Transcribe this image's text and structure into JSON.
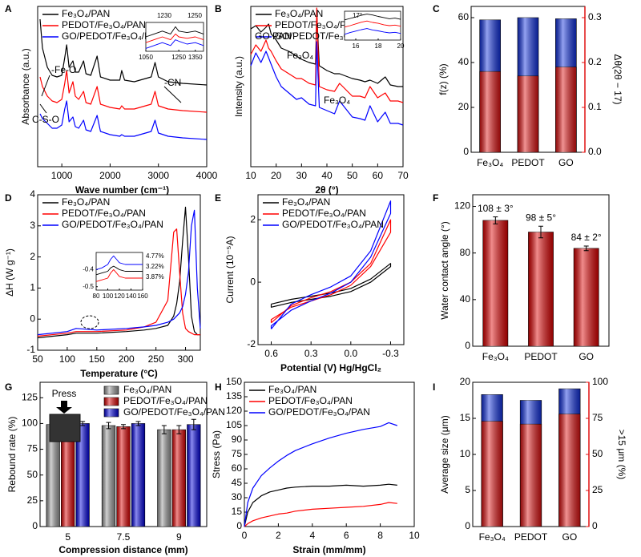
{
  "chart_data": [
    {
      "panel": "A",
      "type": "line",
      "xlabel": "Wave number (cm⁻¹)",
      "ylabel": "Absorbance (a.u.)",
      "x": [
        550,
        600,
        700,
        800,
        900,
        1000,
        1060,
        1100,
        1150,
        1230,
        1280,
        1350,
        1450,
        1500,
        1600,
        1730,
        1800,
        2000,
        2200,
        2240,
        2300,
        2500,
        2850,
        2930,
        3000,
        3200,
        3500,
        4000
      ],
      "xlim": [
        500,
        4000
      ],
      "xticks": [
        1000,
        2000,
        3000,
        4000
      ],
      "ylim": [
        0,
        10
      ],
      "legend": "upper left",
      "series": [
        {
          "name": "Fe₃O₄/PAN",
          "color": "#000000",
          "values": [
            9.2,
            7.4,
            6.2,
            5.7,
            5.6,
            5.7,
            6.8,
            7.6,
            6.2,
            6.6,
            5.9,
            5.9,
            6.6,
            5.8,
            5.7,
            6.9,
            5.6,
            5.4,
            5.4,
            6.0,
            5.4,
            5.3,
            5.6,
            6.5,
            5.6,
            5.3,
            5.2,
            5.1
          ]
        },
        {
          "name": "PEDOT/Fe₃O₄/PAN",
          "color": "#ff0000",
          "values": [
            5.6,
            5.0,
            4.4,
            4.1,
            4.0,
            4.2,
            5.2,
            6.0,
            4.6,
            5.3,
            4.4,
            4.2,
            4.7,
            4.0,
            3.9,
            5.0,
            3.9,
            3.7,
            3.6,
            3.8,
            3.6,
            3.6,
            3.9,
            4.7,
            3.8,
            3.6,
            3.5,
            3.4
          ]
        },
        {
          "name": "GO/PEDOT/Fe₃O₄/PAN",
          "color": "#0000ff",
          "values": [
            3.3,
            3.0,
            2.7,
            2.4,
            2.4,
            2.6,
            3.6,
            4.1,
            2.8,
            3.1,
            2.5,
            2.4,
            2.9,
            2.3,
            2.2,
            3.2,
            2.2,
            2.0,
            1.9,
            2.0,
            1.9,
            1.9,
            2.2,
            2.9,
            2.1,
            1.9,
            1.8,
            1.7
          ]
        }
      ],
      "annotations": [
        "-Fe-O",
        "-CN",
        "C-S-O"
      ],
      "inset": {
        "type": "line",
        "x": [
          1050,
          1100,
          1150,
          1200,
          1230,
          1250,
          1300,
          1350,
          1400
        ],
        "xlim": [
          1050,
          1400
        ],
        "xticks": [
          1050,
          1250,
          1350
        ],
        "ylim": [
          0,
          10
        ],
        "series": [
          {
            "color": "#000000",
            "values": [
              5,
              6,
              7,
              6,
              8.5,
              7,
              6.5,
              7,
              6
            ]
          },
          {
            "color": "#ff0000",
            "values": [
              3,
              4,
              5,
              4,
              6,
              5,
              4.5,
              5,
              4
            ]
          },
          {
            "color": "#0000ff",
            "values": [
              1,
              2,
              3,
              2,
              4,
              3.5,
              2.5,
              3,
              2
            ]
          }
        ],
        "annotations": [
          "1230",
          "1250"
        ]
      }
    },
    {
      "panel": "B",
      "type": "line",
      "xlabel": "2θ (°)",
      "ylabel": "Intensity (a.u.)",
      "x": [
        10,
        12,
        14,
        16,
        17,
        18,
        20,
        22,
        25,
        28,
        30,
        33,
        35.5,
        36,
        37,
        40,
        43,
        45,
        50,
        53,
        55,
        57,
        60,
        63,
        65,
        68,
        70
      ],
      "xlim": [
        10,
        70
      ],
      "xticks": [
        10,
        20,
        30,
        40,
        50,
        60,
        70
      ],
      "ylim": [
        0,
        10
      ],
      "legend": "upper left",
      "series": [
        {
          "name": "Fe₃O₄/PAN",
          "color": "#000000",
          "values": [
            8.6,
            8.8,
            8.4,
            8.7,
            8.9,
            8.3,
            7.9,
            7.4,
            7.2,
            6.9,
            6.7,
            6.5,
            6.4,
            9.6,
            6.3,
            6.0,
            5.8,
            5.8,
            5.5,
            5.4,
            5.3,
            5.4,
            5.2,
            5.6,
            5.1,
            5.0,
            5.0
          ]
        },
        {
          "name": "PEDOT/Fe₃O₄/PAN",
          "color": "#ff0000",
          "values": [
            7.0,
            7.6,
            7.2,
            7.9,
            7.4,
            7.2,
            6.6,
            6.1,
            5.8,
            5.5,
            5.5,
            5.2,
            5.1,
            9.9,
            5.0,
            4.8,
            4.7,
            5.2,
            4.4,
            4.4,
            4.3,
            5.0,
            4.3,
            4.6,
            4.1,
            4.1,
            4.0
          ]
        },
        {
          "name": "GO/PEDOT/Fe₃O₄/PAN",
          "color": "#0000ff",
          "values": [
            6.3,
            7.1,
            6.5,
            7.2,
            6.8,
            6.4,
            5.6,
            5.0,
            4.6,
            4.2,
            4.3,
            3.9,
            3.8,
            7.8,
            3.7,
            3.5,
            3.3,
            4.1,
            3.1,
            3.0,
            2.9,
            3.8,
            2.8,
            3.4,
            2.7,
            2.7,
            2.6
          ]
        }
      ],
      "annotations": [
        "GO PAN",
        "Fe₃O₄",
        "Fe₃O₄"
      ],
      "inset": {
        "type": "line",
        "x": [
          15,
          15.5,
          16,
          16.5,
          17,
          17.5,
          18,
          18.5,
          19,
          19.5,
          20
        ],
        "xlim": [
          15,
          20
        ],
        "xticks": [
          16,
          18,
          20
        ],
        "ylim": [
          0,
          10
        ],
        "series": [
          {
            "color": "#000000",
            "values": [
              7,
              7.5,
              8,
              8.6,
              9,
              8.7,
              8.2,
              7.8,
              7.4,
              7.6,
              7.2
            ]
          },
          {
            "color": "#ff0000",
            "values": [
              4.5,
              5,
              5.6,
              6.2,
              6.6,
              6.1,
              5.8,
              5.3,
              5,
              5.2,
              4.8
            ]
          },
          {
            "color": "#0000ff",
            "values": [
              2,
              2.6,
              3.1,
              3.6,
              4,
              3.5,
              3.2,
              2.8,
              2.5,
              2.7,
              2.3
            ]
          }
        ],
        "annotations": [
          "17°"
        ]
      }
    },
    {
      "panel": "C",
      "type": "bar",
      "categories": [
        "Fe₃O₄",
        "PEDOT",
        "GO"
      ],
      "ylabel": "f(z) (%)",
      "y2label": "Δθ(2θ − 17)",
      "ylim": [
        0,
        65
      ],
      "yticks": [
        0,
        20,
        40,
        60
      ],
      "y2lim": [
        0,
        0.325
      ],
      "y2ticks": [
        {
          "value": 0,
          "label": "0.0"
        },
        0.1,
        0.2,
        0.3
      ],
      "series": [
        {
          "color": "#1030e0",
          "values": [
            59,
            60,
            59.5
          ]
        },
        {
          "color": "#e01010",
          "axis": "y2",
          "values": [
            0.18,
            0.17,
            0.19
          ]
        }
      ]
    },
    {
      "panel": "D",
      "type": "line",
      "xlabel": "Temperature (°C)",
      "ylabel": "ΔH (W g⁻¹)",
      "x": [
        50,
        100,
        115,
        150,
        200,
        230,
        250,
        270,
        280,
        285,
        290,
        295,
        300,
        305,
        310,
        315,
        320,
        325
      ],
      "xlim": [
        50,
        325
      ],
      "xticks": [
        50,
        100,
        150,
        200,
        250,
        300
      ],
      "ylim": [
        -1,
        4
      ],
      "yticks": [
        -1,
        0,
        1,
        2,
        3,
        4
      ],
      "legend": "upper left",
      "series": [
        {
          "name": "Fe₃O₄/PAN",
          "color": "#000000",
          "values": [
            -0.6,
            -0.5,
            -0.45,
            -0.45,
            -0.4,
            -0.35,
            -0.3,
            -0.2,
            0.1,
            0.5,
            1.2,
            2.5,
            3.6,
            2.0,
            0.1,
            -0.4,
            -0.5,
            -0.5
          ]
        },
        {
          "name": "PEDOT/Fe₃O₄/PAN",
          "color": "#ff0000",
          "values": [
            -0.55,
            -0.45,
            -0.4,
            -0.4,
            -0.35,
            -0.25,
            -0.1,
            0.6,
            2.8,
            2.9,
            1.5,
            0.2,
            -0.3,
            -0.4,
            -0.45,
            -0.5,
            -0.5,
            -0.5
          ]
        },
        {
          "name": "GO/PEDOT/Fe₃O₄/PAN",
          "color": "#0000ff",
          "values": [
            -0.5,
            -0.4,
            -0.3,
            -0.35,
            -0.3,
            -0.25,
            -0.2,
            -0.1,
            0.0,
            0.1,
            0.2,
            0.4,
            0.8,
            1.5,
            3.0,
            3.5,
            1.0,
            -0.3
          ]
        }
      ],
      "inset": {
        "type": "line",
        "x": [
          80,
          90,
          100,
          105,
          110,
          115,
          120,
          130,
          140,
          160
        ],
        "xlim": [
          80,
          160
        ],
        "xticks": [
          80,
          100,
          120,
          140,
          160
        ],
        "ylim": [
          -0.52,
          -0.3
        ],
        "yticks": [
          -0.5,
          -0.4
        ],
        "series": [
          {
            "color": "#000000",
            "values": [
              -0.43,
              -0.42,
              -0.41,
              -0.39,
              -0.38,
              -0.39,
              -0.4,
              -0.41,
              -0.41,
              -0.41
            ]
          },
          {
            "color": "#ff0000",
            "values": [
              -0.47,
              -0.46,
              -0.45,
              -0.42,
              -0.4,
              -0.42,
              -0.44,
              -0.45,
              -0.45,
              -0.45
            ]
          },
          {
            "color": "#0000ff",
            "values": [
              -0.4,
              -0.39,
              -0.37,
              -0.34,
              -0.32,
              -0.34,
              -0.36,
              -0.37,
              -0.37,
              -0.37
            ]
          }
        ],
        "annotations": [
          "4.77%",
          "3.22%",
          "3.87%"
        ]
      }
    },
    {
      "panel": "E",
      "type": "line",
      "xlabel": "Potential (V) Hg/HgCl₂",
      "ylabel": "Current (10⁻⁵A)",
      "xlim": [
        0.7,
        -0.4
      ],
      "xticks": [
        0.6,
        0.3,
        {
          "value": 0,
          "label": "0.0"
        },
        -0.3
      ],
      "ylim": [
        -2,
        2.8
      ],
      "yticks": [
        -2,
        0,
        2
      ],
      "legend": "upper left",
      "series": [
        {
          "name": "Fe₃O₄/PAN",
          "color": "#000000",
          "x": [
            0.6,
            0.45,
            0.3,
            0.15,
            0,
            -0.15,
            -0.3,
            -0.3,
            -0.15,
            0,
            0.15,
            0.3,
            0.45,
            0.6,
            0.6
          ],
          "values": [
            -0.7,
            -0.55,
            -0.45,
            -0.35,
            -0.2,
            0.1,
            0.6,
            0.5,
            0.0,
            -0.3,
            -0.45,
            -0.55,
            -0.65,
            -0.8,
            -0.7
          ]
        },
        {
          "name": "PEDOT/Fe₃O₄/PAN",
          "color": "#ff0000",
          "x": [
            0.6,
            0.45,
            0.3,
            0.15,
            0,
            -0.15,
            -0.3,
            -0.3,
            -0.15,
            0,
            0.15,
            0.3,
            0.45,
            0.6,
            0.6
          ],
          "values": [
            -1.3,
            -0.75,
            -0.5,
            -0.3,
            0.0,
            0.6,
            2.0,
            1.6,
            0.5,
            -0.1,
            -0.4,
            -0.6,
            -0.8,
            -1.2,
            -1.3
          ]
        },
        {
          "name": "GO/PEDOT/Fe₃O₄/PAN",
          "color": "#0000ff",
          "x": [
            0.6,
            0.45,
            0.3,
            0.15,
            0,
            -0.15,
            -0.3,
            -0.3,
            -0.15,
            0,
            0.15,
            0.3,
            0.45,
            0.6,
            0.6
          ],
          "values": [
            -1.5,
            -0.7,
            -0.4,
            -0.15,
            0.2,
            1.0,
            2.6,
            2.2,
            0.8,
            0.0,
            -0.35,
            -0.6,
            -0.9,
            -1.4,
            -1.5
          ]
        }
      ]
    },
    {
      "panel": "F",
      "type": "bar",
      "categories": [
        "Fe₃O₄",
        "PEDOT",
        "GO"
      ],
      "ylabel": "Water contact angle (°)",
      "ylim": [
        0,
        130
      ],
      "yticks": [
        0,
        40,
        80,
        120
      ],
      "series": [
        {
          "color": "#e00000",
          "values": [
            108,
            98,
            84
          ],
          "errors": [
            3,
            5,
            2
          ],
          "value_labels": [
            "108 ± 3°",
            "98 ± 5°",
            "84 ± 2°"
          ]
        }
      ]
    },
    {
      "panel": "G",
      "type": "bar",
      "grouped": true,
      "categories": [
        "5",
        "7.5",
        "9"
      ],
      "xlabel": "Compression distance (mm)",
      "ylabel": "Rebound rate (%)",
      "ylim": [
        0,
        140
      ],
      "yticks": [
        0,
        25,
        50,
        75,
        100,
        125
      ],
      "legend": "upper right",
      "series": [
        {
          "name": "Fe₃O₄/PAN",
          "color": "#9a9a9a",
          "values": [
            99,
            98,
            94
          ],
          "errors": [
            2,
            3,
            4
          ]
        },
        {
          "name": "PEDOT/Fe₃O₄/PAN",
          "color": "#e00000",
          "values": [
            98,
            97,
            94
          ],
          "errors": [
            2,
            2,
            4
          ]
        },
        {
          "name": "GO/PEDOT/Fe₃O₄/PAN",
          "color": "#0000e0",
          "values": [
            100,
            100,
            99
          ],
          "errors": [
            2,
            2,
            5
          ]
        }
      ],
      "annotations": [
        "Press"
      ]
    },
    {
      "panel": "H",
      "type": "line",
      "xlabel": "Strain (mm/mm)",
      "ylabel": "Stress (Pa)",
      "x": [
        0,
        0.2,
        0.5,
        1,
        1.5,
        2,
        2.5,
        3,
        4,
        5,
        6,
        7,
        8,
        8.5,
        9
      ],
      "xlim": [
        0,
        10
      ],
      "xticks": [
        0,
        2,
        4,
        6,
        8,
        10
      ],
      "ylim": [
        0,
        150
      ],
      "yticks": [
        0,
        15,
        30,
        45,
        60,
        75,
        90,
        105,
        120,
        135,
        150
      ],
      "legend": "upper left",
      "series": [
        {
          "name": "Fe₃O₄/PAN",
          "color": "#000000",
          "values": [
            0,
            15,
            25,
            32,
            36,
            38,
            40,
            41,
            42,
            42,
            43,
            42,
            43,
            44,
            43
          ]
        },
        {
          "name": "PEDOT/Fe₃O₄/PAN",
          "color": "#ff0000",
          "values": [
            0,
            3,
            6,
            9,
            11,
            13,
            14,
            16,
            18,
            19,
            20,
            21,
            23,
            25,
            24
          ]
        },
        {
          "name": "GO/PEDOT/Fe₃O₄/PAN",
          "color": "#0000ff",
          "values": [
            0,
            25,
            40,
            53,
            61,
            68,
            74,
            79,
            86,
            92,
            97,
            101,
            104,
            108,
            105
          ]
        }
      ]
    },
    {
      "panel": "I",
      "type": "bar",
      "categories": [
        "Fe₃O₄",
        "PEDOT",
        "GO"
      ],
      "ylabel": "Average size (μm)",
      "y2label": ">15 μm (%)",
      "ylim": [
        0,
        20
      ],
      "yticks": [
        0,
        5,
        10,
        15,
        20
      ],
      "y2lim": [
        0,
        100
      ],
      "y2ticks": [
        0,
        25,
        50,
        75,
        100
      ],
      "series": [
        {
          "color": "#1030e0",
          "values": [
            18.3,
            17.5,
            19.1
          ]
        },
        {
          "color": "#e01010",
          "axis": "y2",
          "values": [
            73,
            71,
            78
          ]
        }
      ]
    }
  ]
}
